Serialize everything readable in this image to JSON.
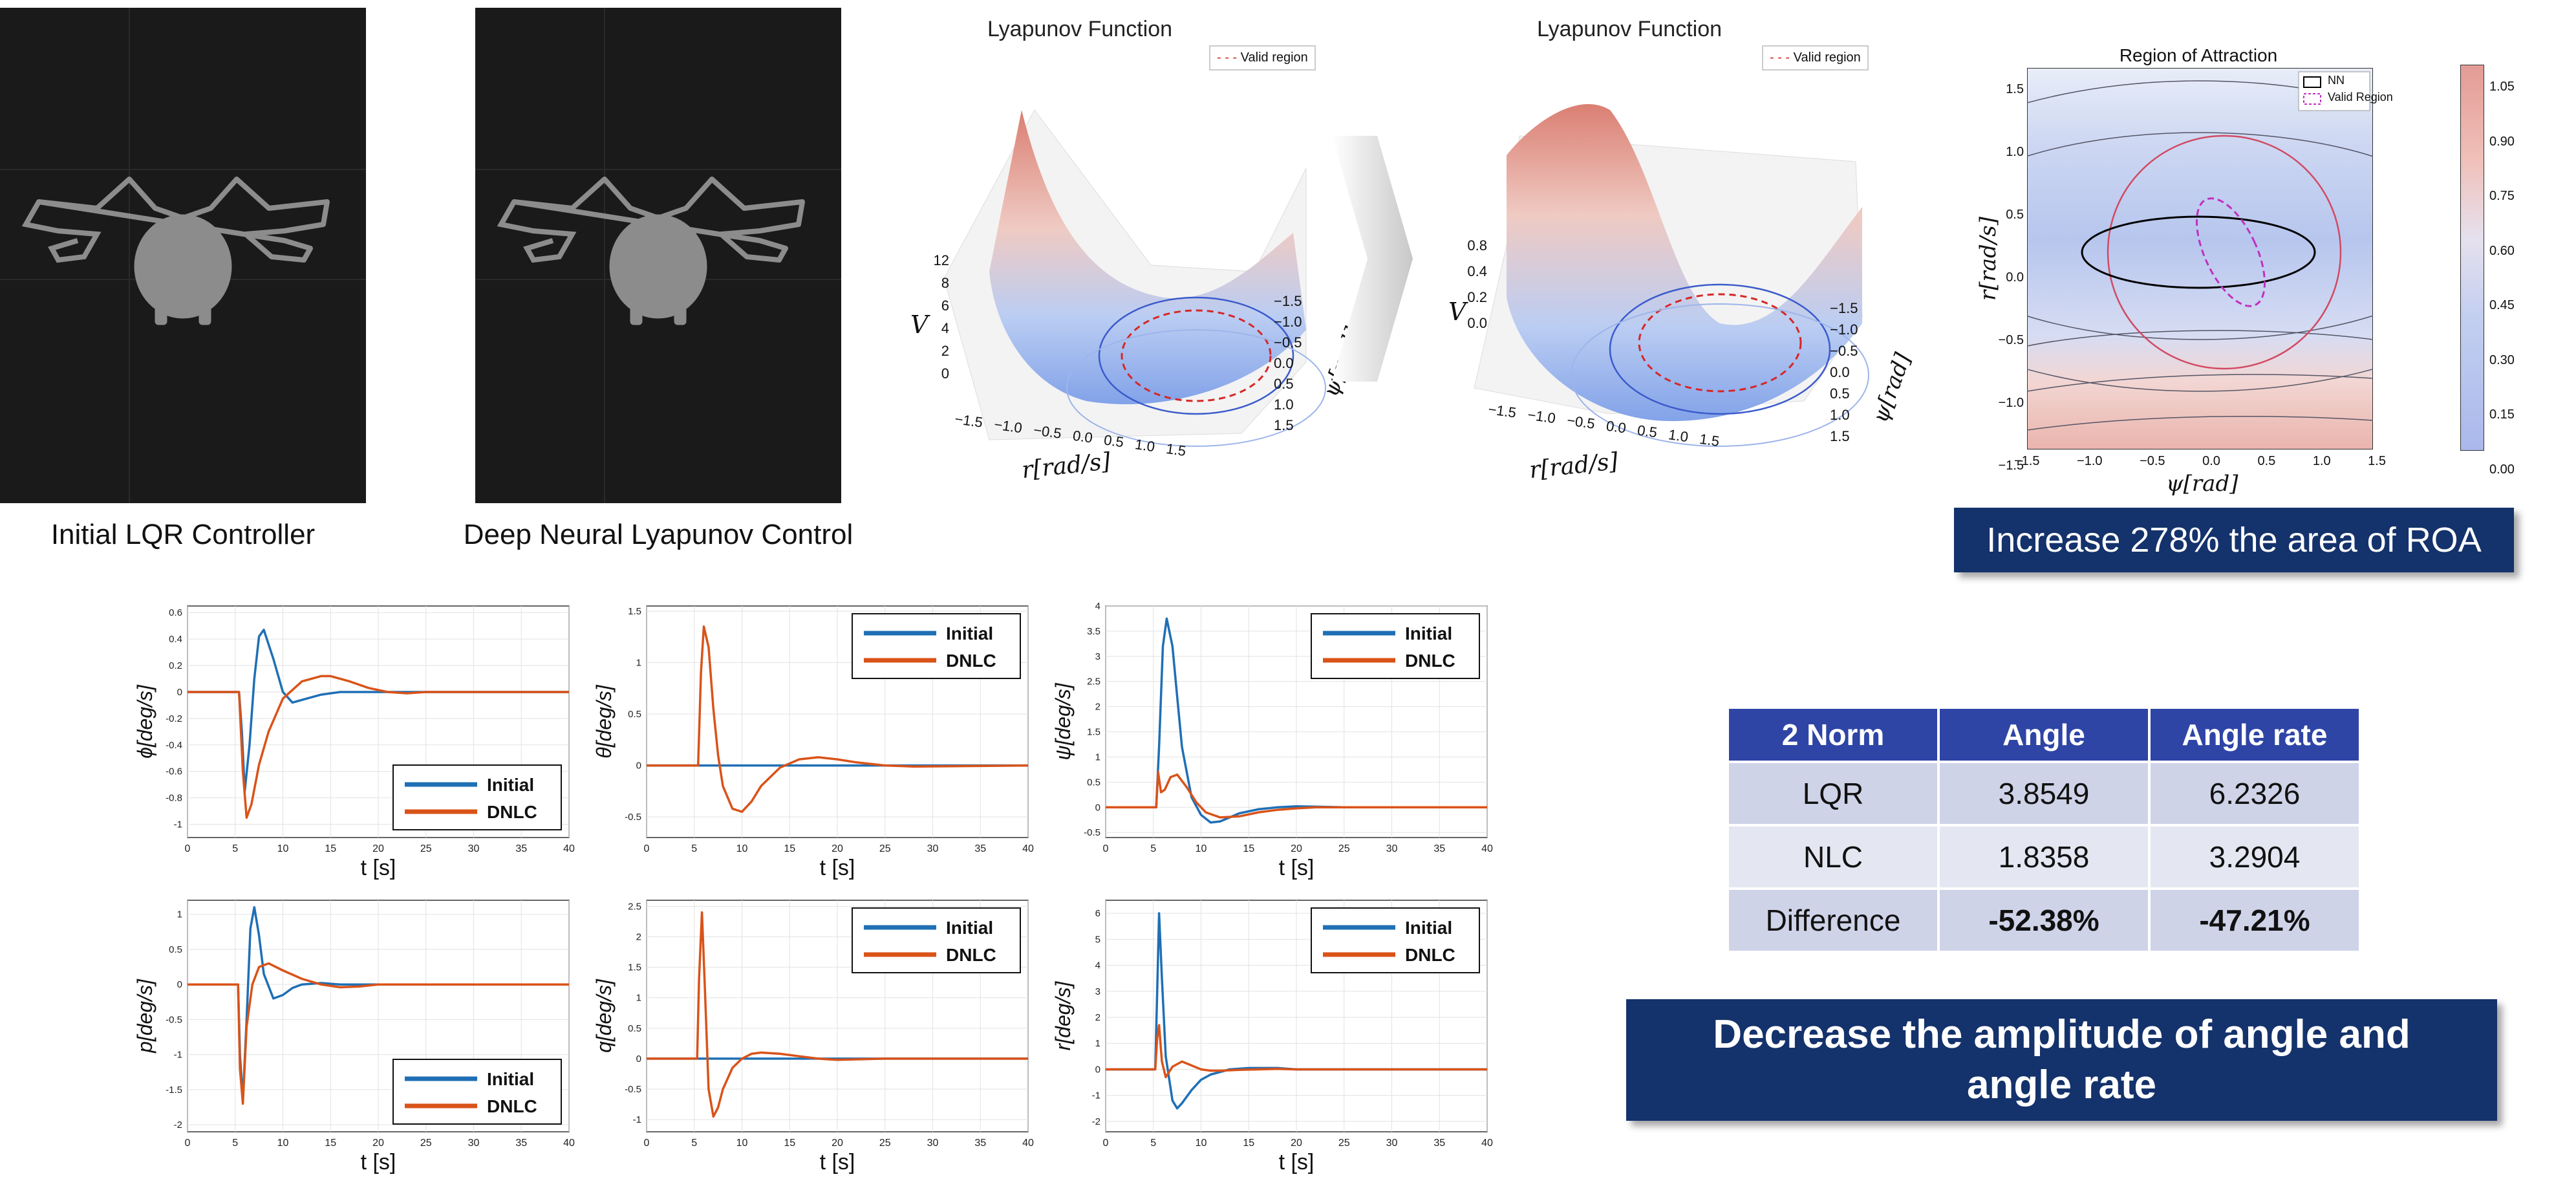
{
  "videos": {
    "left_caption": "Initial LQR Controller",
    "right_caption": "Deep Neural Lyapunov Control"
  },
  "lyapunov": {
    "left": {
      "title": "Lyapunov Function",
      "legend": "Valid region",
      "zlabel": "V",
      "z_ticks": [
        "12",
        "",
        "8",
        "6",
        "4",
        "2",
        "0"
      ],
      "xlabel": "r[rad/s]",
      "ylabel": "ψ[rad]",
      "x_ticks": [
        "−1.5",
        "−1.0",
        "−0.5",
        "0.0",
        "0.5",
        "1.0",
        "1.5"
      ],
      "y_ticks": [
        "−1.5",
        "−1.0",
        "−0.5",
        "0.0",
        "0.5",
        "1.0",
        "1.5"
      ]
    },
    "right": {
      "title": "Lyapunov Function",
      "legend": "Valid region",
      "zlabel": "V",
      "z_ticks": [
        "0.8",
        "",
        "0.4",
        "0.2",
        "0.0"
      ],
      "xlabel": "r[rad/s]",
      "ylabel": "ψ[rad]",
      "x_ticks": [
        "−1.5",
        "−1.0",
        "−0.5",
        "0.0",
        "0.5",
        "1.0",
        "1.5"
      ],
      "y_ticks": [
        "−1.5",
        "−1.0",
        "−0.5",
        "0.0",
        "0.5",
        "1.0",
        "1.5"
      ]
    }
  },
  "roa": {
    "title": "Region of Attraction",
    "legend_nn": "NN",
    "legend_valid": "Valid Region",
    "xlabel": "ψ[rad]",
    "ylabel": "r[rad/s]",
    "x_ticks": [
      "−1.5",
      "−1.0",
      "−0.5",
      "0.0",
      "0.5",
      "1.0",
      "1.5"
    ],
    "y_ticks": [
      "1.5",
      "1.0",
      "0.5",
      "0.0",
      "−0.5",
      "−1.0",
      "−1.5"
    ],
    "colorbar_ticks": [
      "1.05",
      "0.90",
      "0.75",
      "0.60",
      "0.45",
      "0.30",
      "0.15",
      "0.00"
    ],
    "banner": "Increase 278% the area of ROA"
  },
  "table": {
    "headers": [
      "2 Norm",
      "Angle",
      "Angle rate"
    ],
    "rows": [
      [
        "LQR",
        "3.8549",
        "6.2326"
      ],
      [
        "NLC",
        "1.8358",
        "3.2904"
      ],
      [
        "Difference",
        "-52.38%",
        "-47.21%"
      ]
    ],
    "banner_line1": "Decrease the amplitude of angle and",
    "banner_line2": "angle rate"
  },
  "colors": {
    "initial": "#1f6fb5",
    "dnlc": "#d95319",
    "banner": "#14326b",
    "table_header": "#2e45a6"
  },
  "chart_data": [
    {
      "type": "line",
      "ylabel": "ϕ[deg/s]",
      "xlabel": "t [s]",
      "xlim": [
        0,
        40
      ],
      "ylim": [
        -1.1,
        0.65
      ],
      "x_ticks": [
        0,
        5,
        10,
        15,
        20,
        25,
        30,
        35,
        40
      ],
      "y_ticks": [
        0.6,
        0.4,
        0.2,
        0,
        -0.2,
        -0.4,
        -0.6,
        -0.8,
        -1
      ],
      "legend_pos": "bottom-right",
      "series": [
        {
          "name": "Initial",
          "x": [
            0,
            5.4,
            5.7,
            6,
            6.5,
            7,
            7.5,
            8,
            9,
            10,
            11,
            12,
            14,
            16,
            20,
            25,
            40
          ],
          "y": [
            0,
            0,
            -0.3,
            -0.75,
            -0.4,
            0.1,
            0.42,
            0.47,
            0.25,
            0.0,
            -0.08,
            -0.06,
            -0.02,
            0,
            0,
            0,
            0
          ]
        },
        {
          "name": "DNLC",
          "x": [
            0,
            5.4,
            5.8,
            6.2,
            6.7,
            7.5,
            8.5,
            10,
            12,
            14,
            15,
            17,
            19,
            21,
            23,
            25,
            40
          ],
          "y": [
            0,
            0,
            -0.6,
            -0.95,
            -0.85,
            -0.55,
            -0.3,
            -0.05,
            0.08,
            0.12,
            0.12,
            0.08,
            0.03,
            0,
            -0.01,
            0,
            0
          ]
        }
      ]
    },
    {
      "type": "line",
      "ylabel": "θ[deg/s]",
      "xlabel": "t [s]",
      "xlim": [
        0,
        40
      ],
      "ylim": [
        -0.7,
        1.55
      ],
      "x_ticks": [
        0,
        5,
        10,
        15,
        20,
        25,
        30,
        35,
        40
      ],
      "y_ticks": [
        1.5,
        1,
        0.5,
        0,
        -0.5
      ],
      "legend_pos": "top-right",
      "series": [
        {
          "name": "Initial",
          "x": [
            0,
            40
          ],
          "y": [
            0,
            0
          ]
        },
        {
          "name": "DNLC",
          "x": [
            0,
            5.4,
            5.7,
            6,
            6.5,
            7,
            7.5,
            8,
            9,
            10,
            11,
            12,
            14,
            16,
            18,
            20,
            22,
            25,
            28,
            40
          ],
          "y": [
            0,
            0,
            0.9,
            1.35,
            1.15,
            0.55,
            0.1,
            -0.2,
            -0.42,
            -0.45,
            -0.35,
            -0.2,
            -0.02,
            0.06,
            0.08,
            0.06,
            0.03,
            0,
            -0.01,
            0
          ]
        }
      ]
    },
    {
      "type": "line",
      "ylabel": "ψ[deg/s]",
      "xlabel": "t [s]",
      "xlim": [
        0,
        40
      ],
      "ylim": [
        -0.6,
        4
      ],
      "x_ticks": [
        0,
        5,
        10,
        15,
        20,
        25,
        30,
        35,
        40
      ],
      "y_ticks": [
        4,
        3.5,
        3,
        2.5,
        2,
        1.5,
        1,
        0.5,
        0,
        -0.5
      ],
      "legend_pos": "top-right",
      "series": [
        {
          "name": "Initial",
          "x": [
            0,
            5.3,
            5.6,
            6,
            6.4,
            7,
            7.5,
            8,
            9,
            10,
            11,
            12,
            13,
            14,
            16,
            18,
            20,
            25,
            40
          ],
          "y": [
            0,
            0,
            1.2,
            3.2,
            3.75,
            3.2,
            2.2,
            1.2,
            0.2,
            -0.15,
            -0.3,
            -0.28,
            -0.2,
            -0.12,
            -0.04,
            0,
            0.02,
            0,
            0
          ]
        },
        {
          "name": "DNLC",
          "x": [
            0,
            5.3,
            5.5,
            5.8,
            6.2,
            6.8,
            7.5,
            8.5,
            9.5,
            10.5,
            12,
            14,
            16,
            18,
            20,
            22,
            25,
            40
          ],
          "y": [
            0,
            0,
            0.7,
            0.3,
            0.35,
            0.6,
            0.65,
            0.4,
            0.1,
            -0.1,
            -0.2,
            -0.18,
            -0.1,
            -0.05,
            -0.02,
            0,
            0,
            0
          ]
        }
      ]
    },
    {
      "type": "line",
      "ylabel": "p[deg/s]",
      "xlabel": "t [s]",
      "xlim": [
        0,
        40
      ],
      "ylim": [
        -2.1,
        1.2
      ],
      "x_ticks": [
        0,
        5,
        10,
        15,
        20,
        25,
        30,
        35,
        40
      ],
      "y_ticks": [
        1,
        0.5,
        0,
        -0.5,
        -1,
        -1.5,
        -2
      ],
      "legend_pos": "bottom-right",
      "series": [
        {
          "name": "Initial",
          "x": [
            0,
            5.3,
            5.5,
            5.8,
            6.2,
            6.6,
            7,
            7.5,
            8,
            9,
            10,
            11,
            12,
            14,
            16,
            20,
            40
          ],
          "y": [
            0,
            0,
            -1,
            -1.65,
            -0.5,
            0.8,
            1.1,
            0.7,
            0.15,
            -0.2,
            -0.15,
            -0.05,
            0,
            0.02,
            0,
            0,
            0
          ]
        },
        {
          "name": "DNLC",
          "x": [
            0,
            5.3,
            5.5,
            5.8,
            6.2,
            6.8,
            7.5,
            8.5,
            10,
            12,
            14,
            16,
            18,
            20,
            25,
            40
          ],
          "y": [
            0,
            0,
            -1.2,
            -1.7,
            -0.6,
            0,
            0.25,
            0.3,
            0.2,
            0.08,
            0,
            -0.04,
            -0.03,
            0,
            0,
            0
          ]
        }
      ]
    },
    {
      "type": "line",
      "ylabel": "q[deg/s]",
      "xlabel": "t [s]",
      "xlim": [
        0,
        40
      ],
      "ylim": [
        -1.2,
        2.6
      ],
      "x_ticks": [
        0,
        5,
        10,
        15,
        20,
        25,
        30,
        35,
        40
      ],
      "y_ticks": [
        2.5,
        2,
        1.5,
        1,
        0.5,
        0,
        -0.5,
        -1
      ],
      "legend_pos": "top-right",
      "series": [
        {
          "name": "Initial",
          "x": [
            0,
            40
          ],
          "y": [
            0,
            0
          ]
        },
        {
          "name": "DNLC",
          "x": [
            0,
            5.3,
            5.5,
            5.8,
            6.1,
            6.5,
            7,
            7.5,
            8,
            9,
            10,
            11,
            12,
            14,
            16,
            18,
            20,
            25,
            40
          ],
          "y": [
            0,
            0,
            1.3,
            2.4,
            1.2,
            -0.5,
            -0.95,
            -0.8,
            -0.5,
            -0.15,
            0,
            0.08,
            0.1,
            0.08,
            0.04,
            0,
            -0.02,
            0,
            0
          ]
        }
      ]
    },
    {
      "type": "line",
      "ylabel": "r[deg/s]",
      "xlabel": "t [s]",
      "xlim": [
        0,
        40
      ],
      "ylim": [
        -2.4,
        6.5
      ],
      "x_ticks": [
        0,
        5,
        10,
        15,
        20,
        25,
        30,
        35,
        40
      ],
      "y_ticks": [
        6,
        5,
        4,
        3,
        2,
        1,
        0,
        -1,
        -2
      ],
      "legend_pos": "top-right",
      "series": [
        {
          "name": "Initial",
          "x": [
            0,
            5.2,
            5.4,
            5.6,
            5.9,
            6.3,
            7,
            7.5,
            8,
            9,
            10,
            11,
            12,
            13,
            15,
            18,
            20,
            25,
            40
          ],
          "y": [
            0,
            0,
            3,
            6,
            3.5,
            0.5,
            -1.2,
            -1.5,
            -1.3,
            -0.8,
            -0.4,
            -0.2,
            -0.1,
            0,
            0.05,
            0.05,
            0,
            0,
            0
          ]
        },
        {
          "name": "DNLC",
          "x": [
            0,
            5.2,
            5.4,
            5.6,
            5.9,
            6.3,
            7,
            8,
            9,
            10,
            11,
            12,
            14,
            16,
            18,
            20,
            25,
            40
          ],
          "y": [
            0,
            0,
            1.2,
            1.7,
            0.3,
            -0.3,
            0.1,
            0.3,
            0.15,
            0,
            -0.05,
            -0.05,
            -0.02,
            0,
            0.02,
            0,
            0,
            0
          ]
        }
      ]
    }
  ]
}
